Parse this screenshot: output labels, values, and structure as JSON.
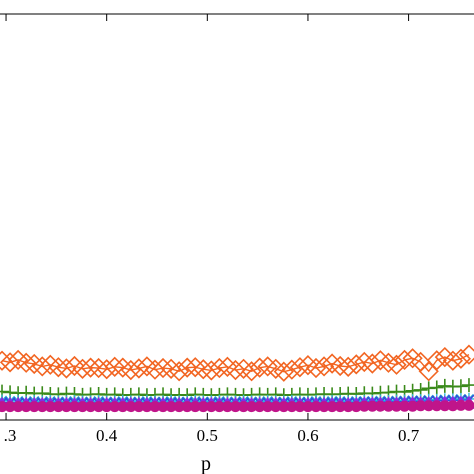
{
  "chart_data": {
    "type": "line",
    "xlabel": "p",
    "ylabel": "",
    "title": "",
    "xlim": [
      0.294,
      0.765
    ],
    "ylim": [
      0,
      1
    ],
    "x_ticks": [
      0.3,
      0.4,
      0.5,
      0.6,
      0.7
    ],
    "x_tick_labels": [
      ".3",
      "0.4",
      "0.5",
      "0.6",
      "0.7"
    ],
    "top_ticks": [
      0.3,
      0.4,
      0.5,
      0.6,
      0.7
    ],
    "grid": false,
    "legend": "none",
    "series": [
      {
        "color": "#f26522",
        "marker": "diamond",
        "x": [
          0.296,
          0.304,
          0.312,
          0.32,
          0.328,
          0.336,
          0.344,
          0.352,
          0.36,
          0.368,
          0.376,
          0.384,
          0.392,
          0.4,
          0.408,
          0.416,
          0.424,
          0.432,
          0.44,
          0.448,
          0.456,
          0.464,
          0.472,
          0.48,
          0.488,
          0.496,
          0.504,
          0.512,
          0.52,
          0.528,
          0.536,
          0.544,
          0.552,
          0.56,
          0.568,
          0.576,
          0.584,
          0.592,
          0.6,
          0.608,
          0.616,
          0.624,
          0.632,
          0.64,
          0.648,
          0.656,
          0.664,
          0.672,
          0.68,
          0.688,
          0.696,
          0.704,
          0.712,
          0.72,
          0.728,
          0.736,
          0.744,
          0.752,
          0.76
        ],
        "y": [
          0.146,
          0.142,
          0.148,
          0.141,
          0.138,
          0.132,
          0.136,
          0.13,
          0.127,
          0.133,
          0.126,
          0.129,
          0.128,
          0.125,
          0.131,
          0.129,
          0.123,
          0.127,
          0.132,
          0.124,
          0.128,
          0.126,
          0.12,
          0.129,
          0.13,
          0.125,
          0.122,
          0.128,
          0.131,
          0.123,
          0.126,
          0.12,
          0.129,
          0.132,
          0.126,
          0.119,
          0.124,
          0.13,
          0.135,
          0.128,
          0.132,
          0.139,
          0.133,
          0.131,
          0.137,
          0.143,
          0.139,
          0.147,
          0.141,
          0.136,
          0.148,
          0.152,
          0.143,
          0.12,
          0.147,
          0.155,
          0.146,
          0.151,
          0.161
        ]
      },
      {
        "color": "#3a8a1a",
        "marker": "plus",
        "x": [
          0.296,
          0.304,
          0.312,
          0.32,
          0.328,
          0.336,
          0.344,
          0.352,
          0.36,
          0.368,
          0.376,
          0.384,
          0.392,
          0.4,
          0.408,
          0.416,
          0.424,
          0.432,
          0.44,
          0.448,
          0.456,
          0.464,
          0.472,
          0.48,
          0.488,
          0.496,
          0.504,
          0.512,
          0.52,
          0.528,
          0.536,
          0.544,
          0.552,
          0.56,
          0.568,
          0.576,
          0.584,
          0.592,
          0.6,
          0.608,
          0.616,
          0.624,
          0.632,
          0.64,
          0.648,
          0.656,
          0.664,
          0.672,
          0.68,
          0.688,
          0.696,
          0.704,
          0.712,
          0.72,
          0.728,
          0.736,
          0.744,
          0.752,
          0.76
        ],
        "y": [
          0.07,
          0.068,
          0.066,
          0.067,
          0.065,
          0.066,
          0.064,
          0.063,
          0.065,
          0.064,
          0.062,
          0.063,
          0.064,
          0.062,
          0.063,
          0.061,
          0.062,
          0.063,
          0.061,
          0.062,
          0.063,
          0.061,
          0.062,
          0.061,
          0.063,
          0.062,
          0.061,
          0.062,
          0.063,
          0.062,
          0.061,
          0.062,
          0.063,
          0.062,
          0.063,
          0.061,
          0.062,
          0.063,
          0.062,
          0.063,
          0.064,
          0.063,
          0.064,
          0.065,
          0.064,
          0.066,
          0.065,
          0.067,
          0.068,
          0.07,
          0.069,
          0.072,
          0.074,
          0.078,
          0.08,
          0.084,
          0.082,
          0.083,
          0.086
        ]
      },
      {
        "color": "#2bb8d6",
        "marker": "star",
        "x": [
          0.296,
          0.304,
          0.312,
          0.32,
          0.328,
          0.336,
          0.344,
          0.352,
          0.36,
          0.368,
          0.376,
          0.384,
          0.392,
          0.4,
          0.408,
          0.416,
          0.424,
          0.432,
          0.44,
          0.448,
          0.456,
          0.464,
          0.472,
          0.48,
          0.488,
          0.496,
          0.504,
          0.512,
          0.52,
          0.528,
          0.536,
          0.544,
          0.552,
          0.56,
          0.568,
          0.576,
          0.584,
          0.592,
          0.6,
          0.608,
          0.616,
          0.624,
          0.632,
          0.64,
          0.648,
          0.656,
          0.664,
          0.672,
          0.68,
          0.688,
          0.696,
          0.704,
          0.712,
          0.72,
          0.728,
          0.736,
          0.744,
          0.752,
          0.76
        ],
        "y": [
          0.048,
          0.047,
          0.047,
          0.046,
          0.047,
          0.046,
          0.047,
          0.046,
          0.046,
          0.047,
          0.046,
          0.046,
          0.047,
          0.046,
          0.046,
          0.047,
          0.046,
          0.046,
          0.047,
          0.046,
          0.046,
          0.047,
          0.046,
          0.046,
          0.047,
          0.046,
          0.046,
          0.047,
          0.046,
          0.046,
          0.047,
          0.046,
          0.046,
          0.047,
          0.046,
          0.046,
          0.047,
          0.046,
          0.046,
          0.047,
          0.046,
          0.047,
          0.047,
          0.046,
          0.047,
          0.047,
          0.047,
          0.048,
          0.047,
          0.048,
          0.048,
          0.049,
          0.049,
          0.05,
          0.05,
          0.051,
          0.051,
          0.052,
          0.052
        ]
      },
      {
        "color": "#3050d8",
        "marker": "x",
        "x": [
          0.296,
          0.304,
          0.312,
          0.32,
          0.328,
          0.336,
          0.344,
          0.352,
          0.36,
          0.368,
          0.376,
          0.384,
          0.392,
          0.4,
          0.408,
          0.416,
          0.424,
          0.432,
          0.44,
          0.448,
          0.456,
          0.464,
          0.472,
          0.48,
          0.488,
          0.496,
          0.504,
          0.512,
          0.52,
          0.528,
          0.536,
          0.544,
          0.552,
          0.56,
          0.568,
          0.576,
          0.584,
          0.592,
          0.6,
          0.608,
          0.616,
          0.624,
          0.632,
          0.64,
          0.648,
          0.656,
          0.664,
          0.672,
          0.68,
          0.688,
          0.696,
          0.704,
          0.712,
          0.72,
          0.728,
          0.736,
          0.744,
          0.752,
          0.76
        ],
        "y": [
          0.043,
          0.043,
          0.042,
          0.043,
          0.042,
          0.043,
          0.042,
          0.043,
          0.042,
          0.043,
          0.042,
          0.043,
          0.042,
          0.043,
          0.042,
          0.043,
          0.042,
          0.043,
          0.042,
          0.043,
          0.042,
          0.043,
          0.042,
          0.043,
          0.042,
          0.043,
          0.042,
          0.043,
          0.042,
          0.043,
          0.042,
          0.043,
          0.042,
          0.043,
          0.042,
          0.043,
          0.042,
          0.043,
          0.042,
          0.043,
          0.042,
          0.043,
          0.043,
          0.043,
          0.043,
          0.044,
          0.044,
          0.044,
          0.044,
          0.045,
          0.045,
          0.046,
          0.046,
          0.047,
          0.047,
          0.048,
          0.048,
          0.049,
          0.049
        ]
      },
      {
        "color": "#8a2be2",
        "marker": "triangle",
        "x": [
          0.296,
          0.304,
          0.312,
          0.32,
          0.328,
          0.336,
          0.344,
          0.352,
          0.36,
          0.368,
          0.376,
          0.384,
          0.392,
          0.4,
          0.408,
          0.416,
          0.424,
          0.432,
          0.44,
          0.448,
          0.456,
          0.464,
          0.472,
          0.48,
          0.488,
          0.496,
          0.504,
          0.512,
          0.52,
          0.528,
          0.536,
          0.544,
          0.552,
          0.56,
          0.568,
          0.576,
          0.584,
          0.592,
          0.6,
          0.608,
          0.616,
          0.624,
          0.632,
          0.64,
          0.648,
          0.656,
          0.664,
          0.672,
          0.68,
          0.688,
          0.696,
          0.704,
          0.712,
          0.72,
          0.728,
          0.736,
          0.744,
          0.752,
          0.76
        ],
        "y": [
          0.038,
          0.038,
          0.038,
          0.038,
          0.038,
          0.038,
          0.038,
          0.038,
          0.038,
          0.038,
          0.038,
          0.038,
          0.038,
          0.038,
          0.038,
          0.038,
          0.038,
          0.038,
          0.038,
          0.038,
          0.038,
          0.038,
          0.038,
          0.038,
          0.038,
          0.038,
          0.038,
          0.038,
          0.038,
          0.038,
          0.038,
          0.038,
          0.038,
          0.038,
          0.038,
          0.038,
          0.038,
          0.038,
          0.038,
          0.038,
          0.038,
          0.038,
          0.038,
          0.038,
          0.038,
          0.039,
          0.039,
          0.039,
          0.039,
          0.039,
          0.039,
          0.04,
          0.04,
          0.04,
          0.04,
          0.041,
          0.041,
          0.041,
          0.041
        ]
      },
      {
        "color": "#c0158a",
        "marker": "circle",
        "x": [
          0.296,
          0.304,
          0.312,
          0.32,
          0.328,
          0.336,
          0.344,
          0.352,
          0.36,
          0.368,
          0.376,
          0.384,
          0.392,
          0.4,
          0.408,
          0.416,
          0.424,
          0.432,
          0.44,
          0.448,
          0.456,
          0.464,
          0.472,
          0.48,
          0.488,
          0.496,
          0.504,
          0.512,
          0.52,
          0.528,
          0.536,
          0.544,
          0.552,
          0.56,
          0.568,
          0.576,
          0.584,
          0.592,
          0.6,
          0.608,
          0.616,
          0.624,
          0.632,
          0.64,
          0.648,
          0.656,
          0.664,
          0.672,
          0.68,
          0.688,
          0.696,
          0.704,
          0.712,
          0.72,
          0.728,
          0.736,
          0.744,
          0.752,
          0.76
        ],
        "y": [
          0.033,
          0.033,
          0.033,
          0.033,
          0.033,
          0.033,
          0.033,
          0.033,
          0.033,
          0.033,
          0.033,
          0.033,
          0.033,
          0.033,
          0.033,
          0.033,
          0.033,
          0.033,
          0.033,
          0.033,
          0.033,
          0.033,
          0.033,
          0.033,
          0.033,
          0.033,
          0.033,
          0.033,
          0.033,
          0.033,
          0.033,
          0.033,
          0.033,
          0.033,
          0.033,
          0.033,
          0.033,
          0.033,
          0.033,
          0.033,
          0.033,
          0.033,
          0.033,
          0.033,
          0.033,
          0.034,
          0.034,
          0.034,
          0.034,
          0.034,
          0.034,
          0.034,
          0.035,
          0.035,
          0.035,
          0.035,
          0.035,
          0.036,
          0.036
        ]
      }
    ]
  }
}
